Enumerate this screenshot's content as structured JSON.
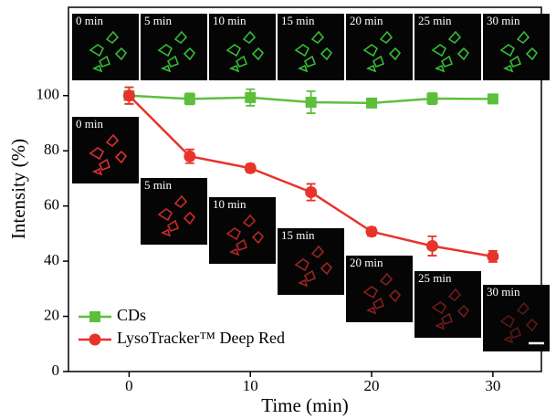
{
  "chart_data": {
    "type": "line",
    "xlabel": "Time (min)",
    "ylabel": "Intensity (%)",
    "x": [
      0,
      5,
      10,
      15,
      20,
      25,
      30
    ],
    "series": [
      {
        "name": "CDs",
        "color": "#5cbf3c",
        "marker": "square",
        "values": [
          100,
          98.8,
          99.3,
          97.6,
          97.3,
          98.9,
          98.8
        ],
        "errors": [
          3,
          2,
          3,
          4,
          1.5,
          2,
          1
        ]
      },
      {
        "name": "LysoTracker™ Deep Red",
        "color": "#e8332b",
        "marker": "circle",
        "values": [
          100,
          78,
          73.7,
          65,
          50.7,
          45.5,
          41.7
        ],
        "errors": [
          3,
          2.5,
          1.5,
          3,
          1.5,
          3.5,
          2
        ]
      }
    ],
    "xlim": [
      -5,
      34
    ],
    "xticks": [
      0,
      10,
      20,
      30
    ],
    "ylim": [
      0,
      132
    ],
    "yticks": [
      0,
      20,
      40,
      60,
      80,
      100
    ],
    "legend": "lower left",
    "inset_labels": [
      "0 min",
      "5 min",
      "10 min",
      "15 min",
      "20 min",
      "25 min",
      "30 min"
    ]
  }
}
